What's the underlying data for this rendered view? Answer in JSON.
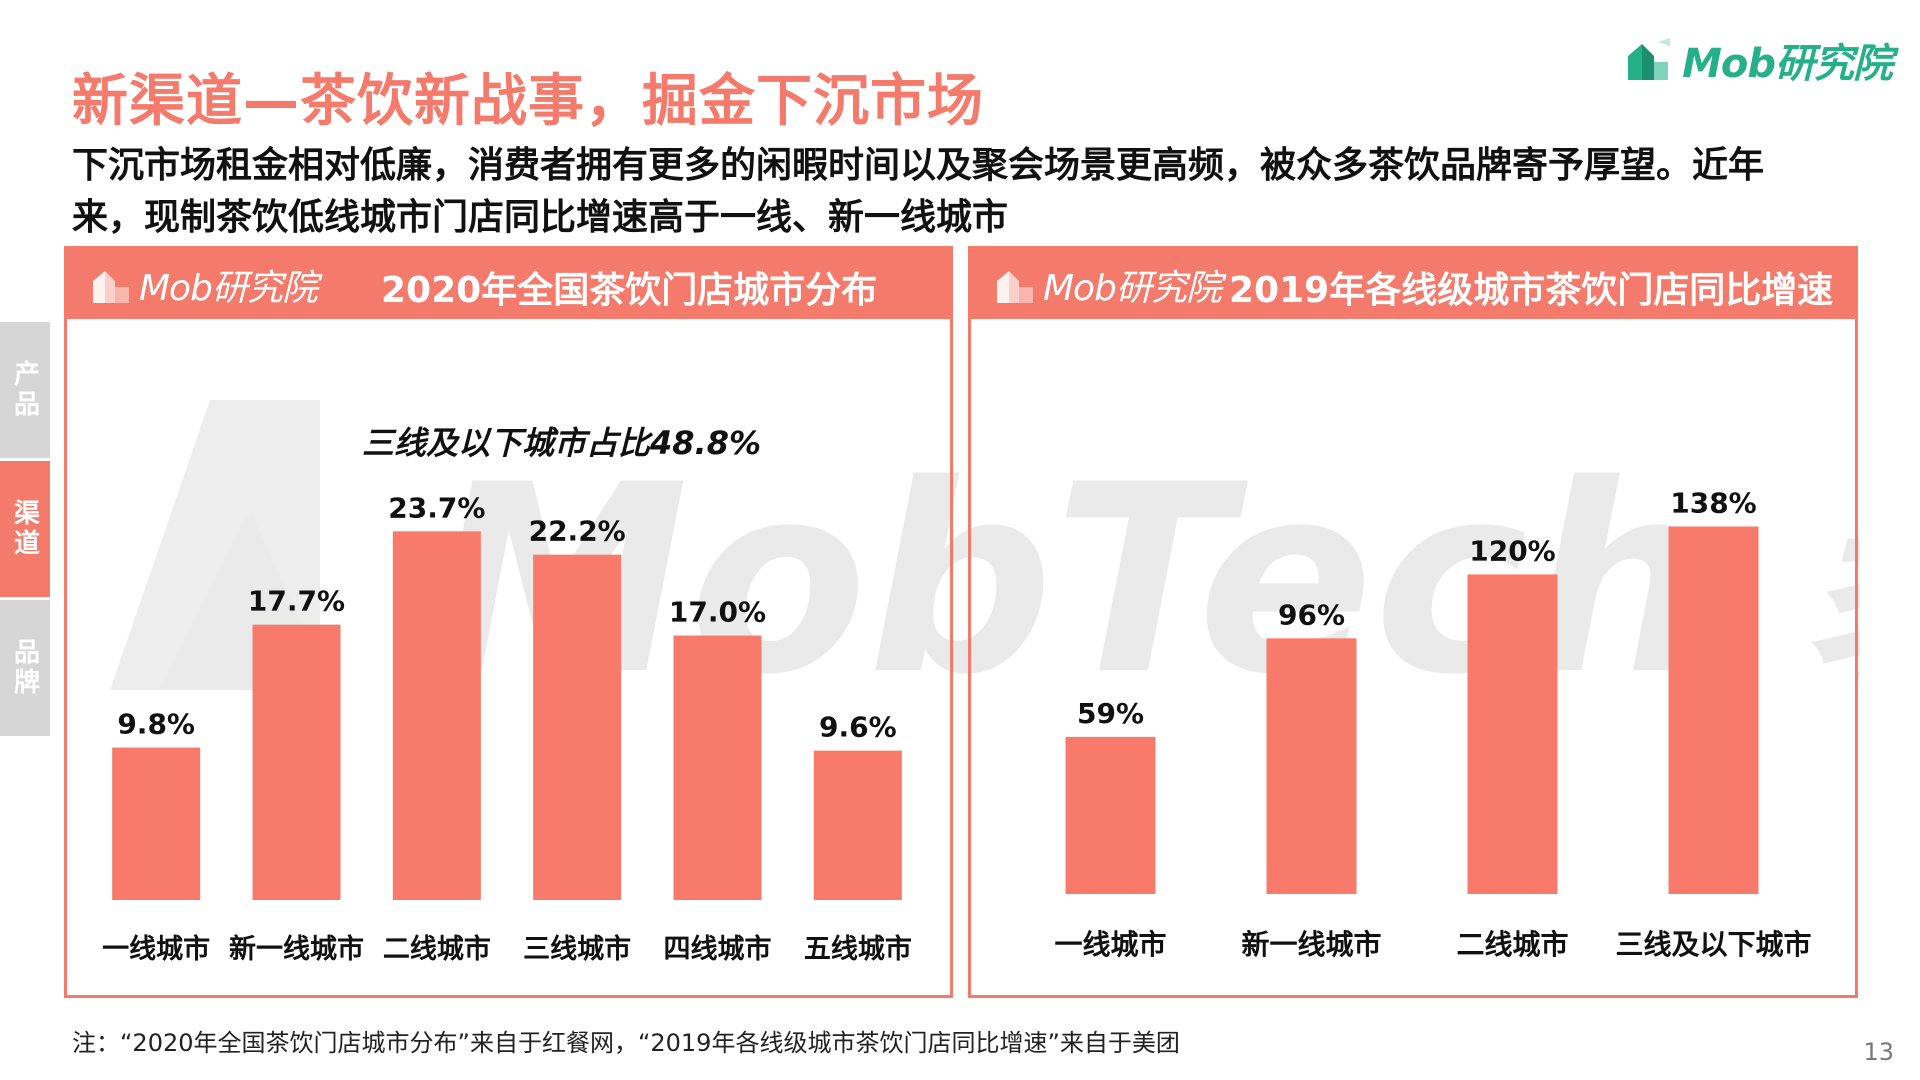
{
  "page": {
    "title": "新渠道—茶饮新战事，掘金下沉市场",
    "subtitle": "下沉市场租金相对低廉，消费者拥有更多的闲暇时间以及聚会场景更高频，被众多茶饮品牌寄予厚望。近年来，现制茶饮低线城市门店同比增速高于一线、新一线城市",
    "brand": "Mob研究院",
    "page_number": "13",
    "footnote": "注：“2020年全国茶饮门店城市分布”来自于红餐网，“2019年各线级城市茶饮门店同比增速”来自于美团",
    "watermark_text": "MobTech 袤博",
    "colors": {
      "accent": "#f47a6b",
      "bar": "#f77a6a",
      "brand_green": "#25b08a",
      "tab_gray": "#d6d6d6"
    }
  },
  "side_tabs": [
    {
      "label": "产品",
      "active": false
    },
    {
      "label": "渠道",
      "active": true
    },
    {
      "label": "品牌",
      "active": false
    }
  ],
  "panels": [
    {
      "logo": "Mob研究院",
      "title": "2020年全国茶饮门店城市分布",
      "annotation": "三线及以下城市占比48.8%"
    },
    {
      "logo": "Mob研究院",
      "title": "2019年各线级城市茶饮门店同比增速"
    }
  ],
  "chart_data": [
    {
      "type": "bar",
      "title": "2020年全国茶饮门店城市分布",
      "categories": [
        "一线城市",
        "新一线城市",
        "二线城市",
        "三线城市",
        "四线城市",
        "五线城市"
      ],
      "values": [
        9.8,
        17.7,
        23.7,
        22.2,
        17.0,
        9.6
      ],
      "data_labels": [
        "9.8%",
        "17.7%",
        "23.7%",
        "22.2%",
        "17.0%",
        "9.6%"
      ],
      "unit": "%",
      "ylim": [
        0,
        36
      ],
      "grid": false,
      "legend": "none"
    },
    {
      "type": "bar",
      "title": "2019年各线级城市茶饮门店同比增速",
      "categories": [
        "一线城市",
        "新一线城市",
        "二线城市",
        "三线及以下城市"
      ],
      "values": [
        59,
        96,
        120,
        138
      ],
      "data_labels": [
        "59%",
        "96%",
        "120%",
        "138%"
      ],
      "unit": "%",
      "ylim": [
        0,
        190
      ],
      "grid": false,
      "legend": "none"
    }
  ]
}
